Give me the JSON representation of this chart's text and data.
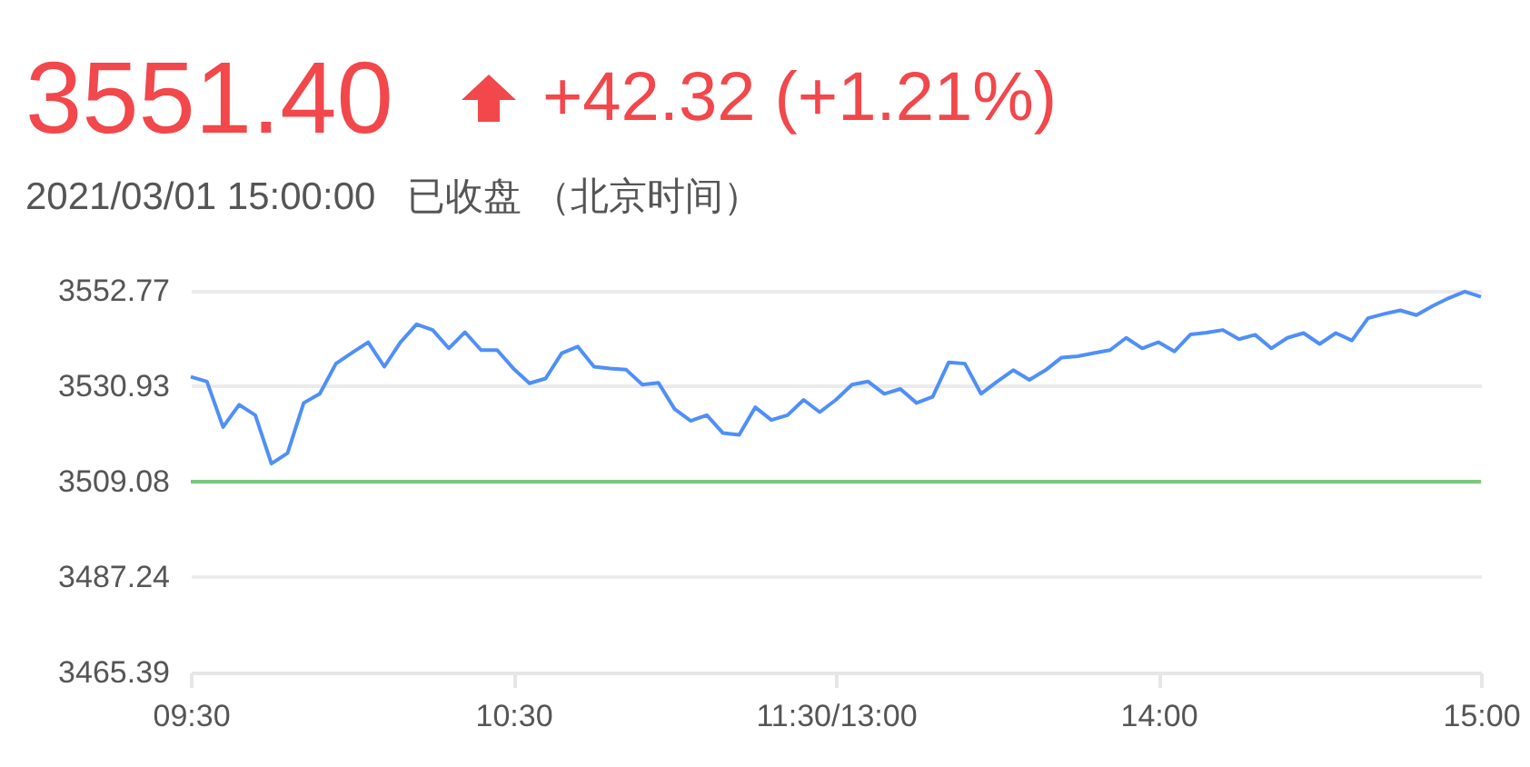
{
  "chart_data": {
    "type": "line",
    "title": "3551.40",
    "subtitle": "2021/03/01 15:00:00   已收盘 （北京时间）",
    "annotations": [
      "+42.32 (+1.21%)"
    ],
    "categories": [
      "09:30",
      null,
      null,
      null,
      null,
      null,
      null,
      null,
      null,
      null,
      null,
      null,
      null,
      null,
      null,
      null,
      null,
      null,
      null,
      null,
      "10:30",
      null,
      null,
      null,
      null,
      null,
      null,
      null,
      null,
      null,
      null,
      null,
      null,
      null,
      null,
      null,
      null,
      null,
      null,
      null,
      "11:30/13:00",
      null,
      null,
      null,
      null,
      null,
      null,
      null,
      null,
      null,
      null,
      null,
      null,
      null,
      null,
      null,
      null,
      null,
      null,
      null,
      "14:00",
      null,
      null,
      null,
      null,
      null,
      null,
      null,
      null,
      null,
      null,
      null,
      null,
      null,
      null,
      null,
      null,
      null,
      null,
      null,
      "15:00"
    ],
    "series": [
      {
        "color": "#4f8ff7",
        "values": [
          3533.1,
          3532.0,
          3521.6,
          3526.7,
          3524.3,
          3513.2,
          3515.6,
          3527.1,
          3529.2,
          3536.1,
          3538.6,
          3541.0,
          3535.4,
          3541.0,
          3545.1,
          3543.8,
          3539.6,
          3543.3,
          3539.2,
          3539.2,
          3535.0,
          3531.6,
          3532.7,
          3538.5,
          3540.0,
          3535.4,
          3535.0,
          3534.7,
          3531.3,
          3531.7,
          3525.7,
          3523.0,
          3524.3,
          3520.2,
          3519.8,
          3526.1,
          3523.2,
          3524.3,
          3527.8,
          3525.0,
          3527.8,
          3531.3,
          3532.0,
          3529.2,
          3530.3,
          3527.1,
          3528.5,
          3536.4,
          3536.1,
          3529.2,
          3532.0,
          3534.6,
          3532.4,
          3534.6,
          3537.5,
          3537.8,
          3538.5,
          3539.2,
          3542.0,
          3539.6,
          3541.0,
          3538.9,
          3542.8,
          3543.2,
          3543.8,
          3541.7,
          3542.7,
          3539.6,
          3542.0,
          3543.1,
          3540.6,
          3543.1,
          3541.4,
          3546.5,
          3547.5,
          3548.3,
          3547.2,
          3549.3,
          3551.1,
          3552.6,
          3551.4
        ]
      }
    ],
    "ylim": [
      3465.39,
      3552.77
    ],
    "yticks": [
      3465.39,
      3487.24,
      3509.08,
      3530.93,
      3552.77
    ],
    "ref_lines": [
      {
        "axis": "y",
        "value": 3509.08,
        "color": "#7cc67e"
      }
    ],
    "grid": "y",
    "marker": "none",
    "line_style": "solid"
  }
}
